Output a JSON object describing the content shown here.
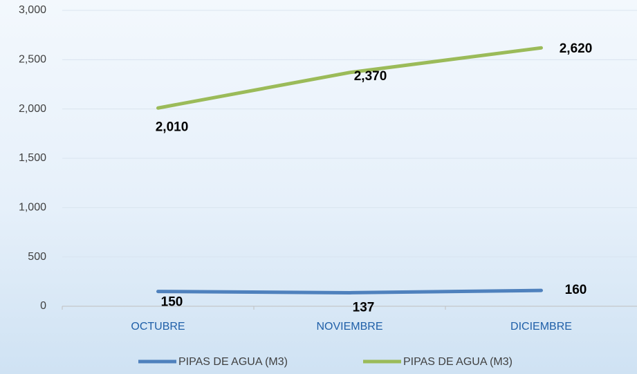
{
  "chart_data": {
    "type": "line",
    "categories": [
      "OCTUBRE",
      "NOVIEMBRE",
      "DICIEMBRE"
    ],
    "series": [
      {
        "name": "PIPAS DE AGUA (M3)",
        "color": "#4f81bd",
        "values": [
          150,
          137,
          160
        ]
      },
      {
        "name": "PIPAS DE AGUA (M3)",
        "color": "#9bbb59",
        "values": [
          2010,
          2370,
          2620
        ],
        "value_labels": [
          "2,010",
          "2,370",
          "2,620"
        ]
      }
    ],
    "ylim": [
      0,
      3000
    ],
    "yticks": [
      0,
      500,
      {
        "value": 1000,
        "label": "1,000"
      },
      {
        "value": 1500,
        "label": "1,500"
      },
      {
        "value": 2000,
        "label": "2,000"
      },
      {
        "value": 2500,
        "label": "2,500"
      },
      {
        "value": 3000,
        "label": "3,000"
      }
    ],
    "grid": true,
    "legend": "bottom"
  }
}
